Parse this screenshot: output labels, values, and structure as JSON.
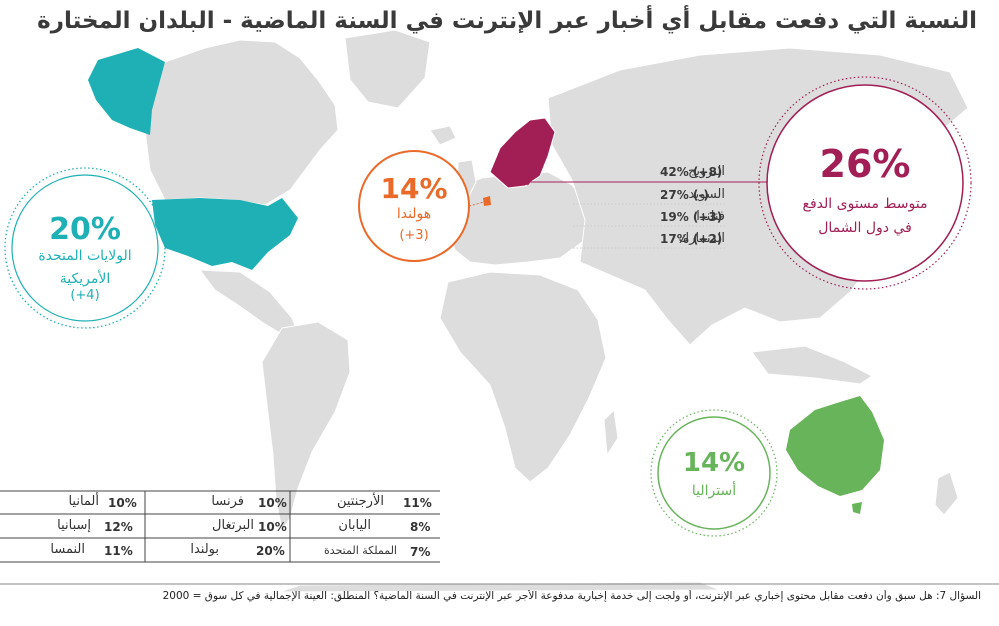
{
  "title": "النسبة التي دفعت مقابل أي أخبار عبر الإنترنت في السنة الماضية  -  البلدان المختارة",
  "colors": {
    "usa": "#1fb0b5",
    "netherlands": "#ea6a2a",
    "nordic": "#a11f55",
    "australia": "#67b45a",
    "land": "#dddddd"
  },
  "usa": {
    "pct": "20%",
    "name_line1": "الولايات المتحدة",
    "name_line2": "الأمريكية",
    "change": "(+4)"
  },
  "netherlands": {
    "pct": "14%",
    "name": "هولندا",
    "change": "(+3)"
  },
  "nordic_avg": {
    "pct": "26%",
    "label_line1": "متوسط مستوى الدفع",
    "label_line2": "في دول الشمال"
  },
  "nordic_rows": [
    {
      "name": "النرويج",
      "value": "42% (+8)"
    },
    {
      "name": "السويد",
      "value": "27% (-)"
    },
    {
      "name": "فنلندا",
      "value": "19% (+3)"
    },
    {
      "name": "الدنمارك",
      "value": "17% (+2)"
    }
  ],
  "australia": {
    "pct": "14%",
    "name": "أستراليا"
  },
  "other_table": [
    [
      {
        "name": "الأرجنتين",
        "value": "11%"
      },
      {
        "name": "فرنسا",
        "value": "10%"
      },
      {
        "name": "ألمانيا",
        "value": "10%"
      }
    ],
    [
      {
        "name": "اليابان",
        "value": "8%"
      },
      {
        "name": "البرتغال",
        "value": "10%"
      },
      {
        "name": "إسبانيا",
        "value": "12%"
      }
    ],
    [
      {
        "name": "المملكة المتحدة",
        "value": "7%"
      },
      {
        "name": "بولندا",
        "value": "20%"
      },
      {
        "name": "النمسا",
        "value": "11%"
      }
    ]
  ],
  "footnote": "السؤال 7: هل سبق وأن دفعت مقابل محتوى إخباري عبر الإنترنت، أو ولجت إلى خدمة إخبارية مدفوعة الأجر عبر الإنترنت في السنة الماضية؟ المنطلق: العينة الإجمالية في كل سوق = 2000"
}
